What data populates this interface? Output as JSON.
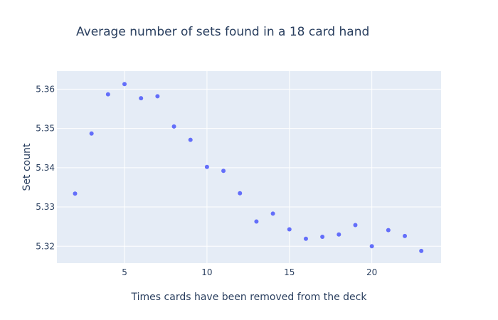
{
  "chart_data": {
    "type": "scatter",
    "title": "Average number of sets found in a 18 card hand",
    "xlabel": "Times cards have been removed from the deck",
    "ylabel": "Set count",
    "xlim": [
      0.9,
      24.2
    ],
    "ylim": [
      5.3157,
      5.3646
    ],
    "x_ticks": [
      5,
      10,
      15,
      20
    ],
    "y_ticks": [
      5.32,
      5.33,
      5.34,
      5.35,
      5.36
    ],
    "x_tick_labels": [
      "5",
      "10",
      "15",
      "20"
    ],
    "y_tick_labels": [
      "5.32",
      "5.33",
      "5.34",
      "5.35",
      "5.36"
    ],
    "grid": true,
    "background_color": "#e5ecf6",
    "marker_color": "#636efa",
    "x": [
      2,
      3,
      4,
      5,
      6,
      7,
      8,
      9,
      10,
      11,
      12,
      13,
      14,
      15,
      16,
      17,
      18,
      19,
      20,
      21,
      22,
      23
    ],
    "y": [
      5.3334,
      5.3487,
      5.3587,
      5.3613,
      5.3577,
      5.3582,
      5.3505,
      5.3471,
      5.3402,
      5.3392,
      5.3335,
      5.3263,
      5.3283,
      5.3243,
      5.3219,
      5.3224,
      5.323,
      5.3254,
      5.32,
      5.3241,
      5.3226,
      5.3188
    ]
  }
}
